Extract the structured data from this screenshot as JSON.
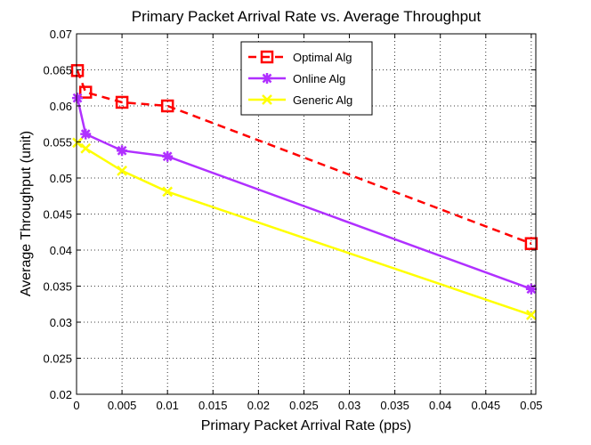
{
  "chart_data": {
    "type": "line",
    "title": "Primary Packet Arrival Rate vs. Average Throughput",
    "xlabel": "Primary Packet Arrival Rate (pps)",
    "ylabel": "Average Throughput (unit)",
    "xlim": [
      0,
      0.0505
    ],
    "ylim": [
      0.02,
      0.07
    ],
    "xticks": [
      0,
      0.005,
      0.01,
      0.015,
      0.02,
      0.025,
      0.03,
      0.035,
      0.04,
      0.045,
      0.05
    ],
    "xtick_labels": [
      "0",
      "0.005",
      "0.01",
      "0.015",
      "0.02",
      "0.025",
      "0.03",
      "0.035",
      "0.04",
      "0.045",
      "0.05"
    ],
    "yticks": [
      0.02,
      0.025,
      0.03,
      0.035,
      0.04,
      0.045,
      0.05,
      0.055,
      0.06,
      0.065,
      0.07
    ],
    "ytick_labels": [
      "0.02",
      "0.025",
      "0.03",
      "0.035",
      "0.04",
      "0.045",
      "0.05",
      "0.055",
      "0.06",
      "0.065",
      "0.07"
    ],
    "grid": true,
    "legend_position": "top-center",
    "series": [
      {
        "name": "Optimal Alg",
        "color": "#ff0000",
        "dash": "dashed",
        "marker": "square",
        "x": [
          0.0001,
          0.001,
          0.005,
          0.01,
          0.05
        ],
        "y": [
          0.0649,
          0.0619,
          0.0605,
          0.06,
          0.0409
        ]
      },
      {
        "name": "Online Alg",
        "color": "#b030ff",
        "dash": "solid",
        "marker": "star",
        "x": [
          0.0001,
          0.001,
          0.005,
          0.01,
          0.05
        ],
        "y": [
          0.0611,
          0.0561,
          0.0538,
          0.053,
          0.0346
        ]
      },
      {
        "name": "Generic Alg",
        "color": "#ffff00",
        "dash": "solid",
        "marker": "x",
        "x": [
          0.0001,
          0.001,
          0.005,
          0.01,
          0.05
        ],
        "y": [
          0.0549,
          0.0541,
          0.051,
          0.0481,
          0.031
        ]
      }
    ]
  }
}
